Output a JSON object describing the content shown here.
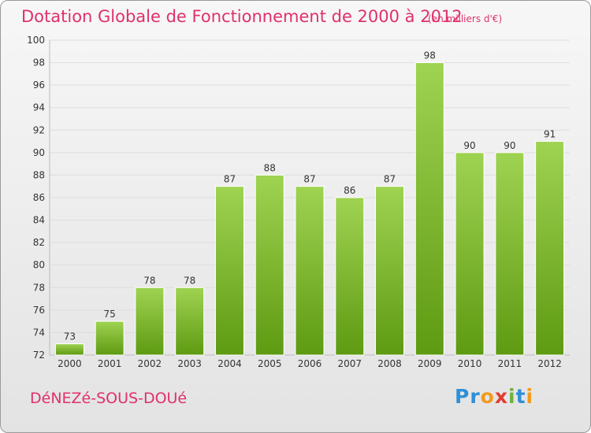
{
  "title": "Dotation Globale de Fonctionnement de 2000 à 2012",
  "unit_note": "(en milliers d'€)",
  "commune": "DéNEZé-SOUS-DOUé",
  "logo": {
    "text": "Proxiti",
    "letters": [
      {
        "ch": "P",
        "color": "#2f8fd8"
      },
      {
        "ch": "r",
        "color": "#2f8fd8"
      },
      {
        "ch": "o",
        "color": "#f29a1b"
      },
      {
        "ch": "x",
        "color": "#e23a2e"
      },
      {
        "ch": "i",
        "color": "#6db33f"
      },
      {
        "ch": "t",
        "color": "#2f8fd8"
      },
      {
        "ch": "i",
        "color": "#f29a1b"
      }
    ]
  },
  "colors": {
    "title": "#e0306a",
    "bar_top": "#9fd352",
    "bar_bottom": "#5e9a12",
    "grid": "#dddddd",
    "axis_text": "#333333"
  },
  "chart_data": {
    "type": "bar",
    "categories": [
      "2000",
      "2001",
      "2002",
      "2003",
      "2004",
      "2005",
      "2006",
      "2007",
      "2008",
      "2009",
      "2010",
      "2011",
      "2012"
    ],
    "values": [
      73,
      75,
      78,
      78,
      87,
      88,
      87,
      86,
      87,
      98,
      90,
      90,
      91
    ],
    "ylim": [
      72,
      100
    ],
    "yticks": [
      72,
      74,
      76,
      78,
      80,
      82,
      84,
      86,
      88,
      90,
      92,
      94,
      96,
      98,
      100
    ],
    "grid": true,
    "data_labels": true,
    "xlabel": "",
    "ylabel": ""
  }
}
